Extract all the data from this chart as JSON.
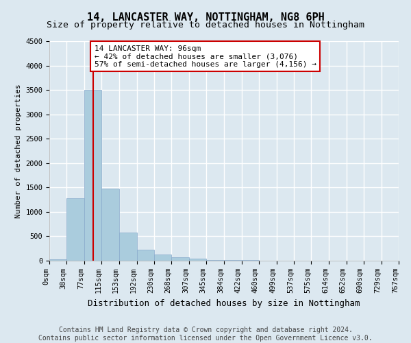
{
  "title": "14, LANCASTER WAY, NOTTINGHAM, NG8 6PH",
  "subtitle": "Size of property relative to detached houses in Nottingham",
  "xlabel": "Distribution of detached houses by size in Nottingham",
  "ylabel": "Number of detached properties",
  "bin_edges": [
    0,
    38,
    77,
    115,
    153,
    192,
    230,
    268,
    307,
    345,
    384,
    422,
    460,
    499,
    537,
    575,
    614,
    652,
    690,
    729,
    767
  ],
  "bar_heights": [
    30,
    1280,
    3500,
    1480,
    580,
    230,
    120,
    75,
    40,
    20,
    10,
    8,
    5,
    3,
    0,
    2,
    1,
    0,
    0,
    0
  ],
  "bar_color": "#aaccdd",
  "bar_edge_color": "#88aacc",
  "property_size": 96,
  "property_line_color": "#cc0000",
  "annotation_text": "14 LANCASTER WAY: 96sqm\n← 42% of detached houses are smaller (3,076)\n57% of semi-detached houses are larger (4,156) →",
  "annotation_box_color": "#ffffff",
  "annotation_box_edge_color": "#cc0000",
  "ylim": [
    0,
    4500
  ],
  "yticks": [
    0,
    500,
    1000,
    1500,
    2000,
    2500,
    3000,
    3500,
    4000,
    4500
  ],
  "footer_text": "Contains HM Land Registry data © Crown copyright and database right 2024.\nContains public sector information licensed under the Open Government Licence v3.0.",
  "background_color": "#dce8f0",
  "plot_background_color": "#dce8f0",
  "grid_color": "#ffffff",
  "title_fontsize": 11,
  "subtitle_fontsize": 9.5,
  "xlabel_fontsize": 9,
  "ylabel_fontsize": 8,
  "tick_fontsize": 7.5,
  "annotation_fontsize": 8,
  "footer_fontsize": 7
}
